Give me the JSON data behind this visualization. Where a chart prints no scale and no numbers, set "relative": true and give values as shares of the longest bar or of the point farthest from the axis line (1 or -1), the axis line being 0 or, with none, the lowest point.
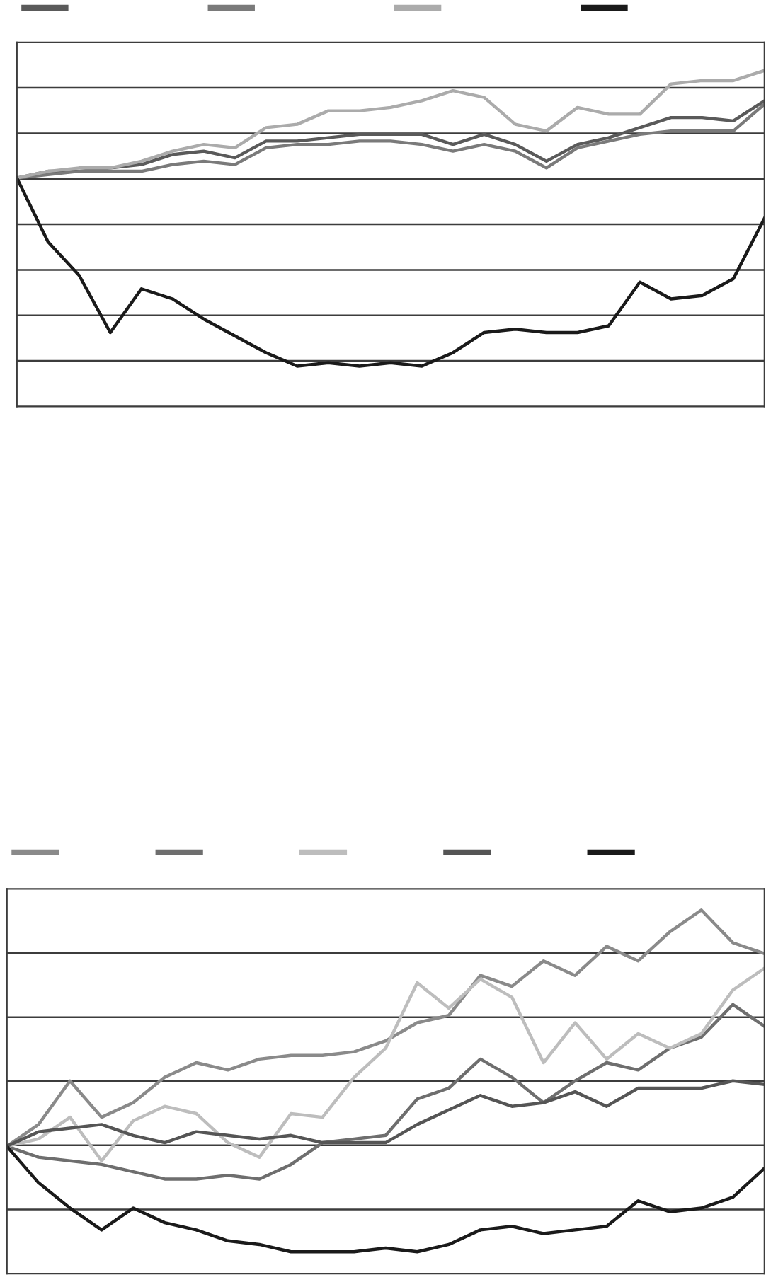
{
  "chart_data": [
    {
      "type": "line",
      "relative": true,
      "grid": "y",
      "categories": [
        null,
        null,
        null,
        null,
        null,
        null,
        null,
        null,
        null,
        null,
        null,
        null,
        null,
        null,
        null,
        null,
        null,
        null,
        null,
        null,
        null,
        null,
        null,
        null,
        null
      ],
      "series": [
        {
          "color": "#5a5a5a",
          "values": [
            0.68,
            0.7,
            0.7,
            0.71,
            0.72,
            0.75,
            0.76,
            0.74,
            0.79,
            0.79,
            0.8,
            0.81,
            0.81,
            0.81,
            0.78,
            0.81,
            0.78,
            0.73,
            0.78,
            0.8,
            0.83,
            0.86,
            0.86,
            0.85,
            0.91
          ]
        },
        {
          "color": "#7a7a7a",
          "values": [
            0.68,
            0.69,
            0.7,
            0.7,
            0.7,
            0.72,
            0.73,
            0.72,
            0.77,
            0.78,
            0.78,
            0.79,
            0.79,
            0.78,
            0.76,
            0.78,
            0.76,
            0.71,
            0.77,
            0.79,
            0.81,
            0.82,
            0.82,
            0.82,
            0.9
          ]
        },
        {
          "color": "#ababab",
          "values": [
            0.68,
            0.7,
            0.71,
            0.71,
            0.73,
            0.76,
            0.78,
            0.77,
            0.83,
            0.84,
            0.88,
            0.88,
            0.89,
            0.91,
            0.94,
            0.92,
            0.84,
            0.82,
            0.89,
            0.87,
            0.87,
            0.96,
            0.97,
            0.97,
            1.0
          ]
        },
        {
          "color": "#1a1a1a",
          "values": [
            0.68,
            0.49,
            0.39,
            0.22,
            0.35,
            0.32,
            0.26,
            0.21,
            0.16,
            0.12,
            0.13,
            0.12,
            0.13,
            0.12,
            0.16,
            0.22,
            0.23,
            0.22,
            0.22,
            0.24,
            0.37,
            0.32,
            0.33,
            0.38,
            0.56
          ]
        }
      ]
    },
    {
      "type": "line",
      "relative": true,
      "grid": "y",
      "categories": [
        null,
        null,
        null,
        null,
        null,
        null,
        null,
        null,
        null,
        null,
        null,
        null,
        null,
        null,
        null,
        null,
        null,
        null,
        null,
        null,
        null,
        null,
        null,
        null,
        null
      ],
      "series": [
        {
          "color": "#8a8a8a",
          "values": [
            0.35,
            0.41,
            0.53,
            0.43,
            0.47,
            0.54,
            0.58,
            0.56,
            0.59,
            0.6,
            0.6,
            0.61,
            0.64,
            0.69,
            0.71,
            0.82,
            0.79,
            0.86,
            0.82,
            0.9,
            0.86,
            0.94,
            1.0,
            0.91,
            0.88
          ]
        },
        {
          "color": "#6e6e6e",
          "values": [
            0.35,
            0.32,
            0.31,
            0.3,
            0.28,
            0.26,
            0.26,
            0.27,
            0.26,
            0.3,
            0.36,
            0.37,
            0.38,
            0.48,
            0.51,
            0.59,
            0.54,
            0.47,
            0.53,
            0.58,
            0.56,
            0.62,
            0.65,
            0.74,
            0.68
          ]
        },
        {
          "color": "#bdbdbd",
          "values": [
            0.35,
            0.37,
            0.43,
            0.31,
            0.42,
            0.46,
            0.44,
            0.36,
            0.32,
            0.44,
            0.43,
            0.54,
            0.62,
            0.8,
            0.73,
            0.81,
            0.76,
            0.58,
            0.69,
            0.59,
            0.66,
            0.62,
            0.66,
            0.78,
            0.84
          ]
        },
        {
          "color": "#555555",
          "values": [
            0.35,
            0.39,
            0.4,
            0.41,
            0.38,
            0.36,
            0.39,
            0.38,
            0.37,
            0.38,
            0.36,
            0.36,
            0.36,
            0.41,
            0.45,
            0.49,
            0.46,
            0.47,
            0.5,
            0.46,
            0.51,
            0.51,
            0.51,
            0.53,
            0.52
          ]
        },
        {
          "color": "#1a1a1a",
          "values": [
            0.35,
            0.25,
            0.18,
            0.12,
            0.18,
            0.14,
            0.12,
            0.09,
            0.08,
            0.06,
            0.06,
            0.06,
            0.07,
            0.06,
            0.08,
            0.12,
            0.13,
            0.11,
            0.12,
            0.13,
            0.2,
            0.17,
            0.18,
            0.21,
            0.29
          ]
        }
      ]
    }
  ]
}
